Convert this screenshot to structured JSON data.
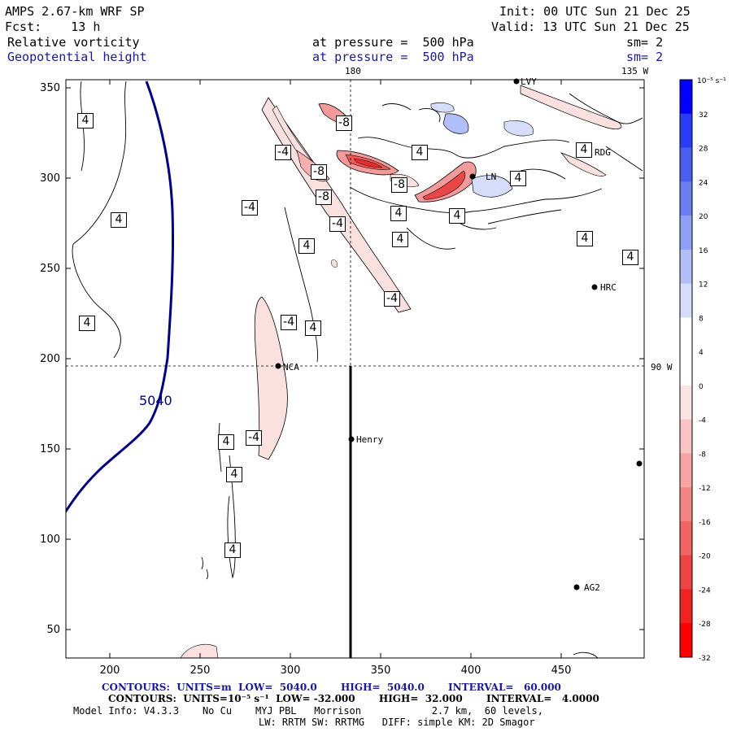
{
  "header": {
    "model": "AMPS 2.67-km WRF SP",
    "init": "Init: 00 UTC Sun 21 Dec 25",
    "fcst": "Fcst:    13 h",
    "valid": "Valid: 13 UTC Sun 21 Dec 25",
    "field1": "Relative vorticity",
    "field1_level": "at pressure =  500 hPa",
    "field1_sm": "sm= 2",
    "field2": "Geopotential height",
    "field2_level": "at pressure =  500 hPa",
    "field2_sm": "sm= 2"
  },
  "map": {
    "x_ticks": [
      "200",
      "250",
      "300",
      "350",
      "400",
      "450"
    ],
    "y_ticks": [
      "350",
      "300",
      "250",
      "200",
      "150",
      "100",
      "50"
    ],
    "meridian_label_180": "180",
    "meridian_label_135": "135 W",
    "meridian_label_90": "90 W",
    "height_contour_label": "5040",
    "stations": [
      {
        "name": "LVY"
      },
      {
        "name": "RDG"
      },
      {
        "name": "LN"
      },
      {
        "name": "HRC"
      },
      {
        "name": "NCA"
      },
      {
        "name": "Henry"
      },
      {
        "name": "AG2"
      },
      {
        "name": ""
      }
    ],
    "vort_labels": [
      "4",
      "4",
      "4",
      "4",
      "4",
      "4",
      "4",
      "4",
      "4",
      "4",
      "4",
      "4",
      "4",
      "4",
      "4",
      "4",
      "-4",
      "-4",
      "-4",
      "-4",
      "-4",
      "-4",
      "-8",
      "-8",
      "-8",
      "-8"
    ]
  },
  "colorbar": {
    "units": "10⁻⁵ s⁻¹",
    "labels": [
      "32",
      "28",
      "24",
      "20",
      "16",
      "12",
      "8",
      "4",
      "0",
      "-4",
      "-8",
      "-12",
      "-16",
      "-20",
      "-24",
      "-28",
      "-32"
    ],
    "colors": [
      "#0000ff",
      "#2a3cf5",
      "#4a5ef0",
      "#6a7ef2",
      "#8e9ff4",
      "#b2bef7",
      "#d6ddfa",
      "#ffffff",
      "#ffffff",
      "#fce3e3",
      "#f9c4c4",
      "#f6a4a4",
      "#f38484",
      "#f06464",
      "#ee4444",
      "#f02222",
      "#ff0000"
    ]
  },
  "footer": {
    "contours1": "CONTOURS:  UNITS=m  LOW=  5040.0       HIGH=  5040.0       INTERVAL=   60.000",
    "contours2": "CONTOURS:  UNITS=10⁻⁵ s⁻¹  LOW= -32.000       HIGH=  32.000       INTERVAL=   4.0000",
    "model_info": "Model Info: V4.3.3    No Cu    MYJ PBL   Morrison            2.7 km,  60 levels,",
    "physics": "LW: RRTM SW: RRTMG   DIFF: simple KM: 2D Smagor"
  }
}
